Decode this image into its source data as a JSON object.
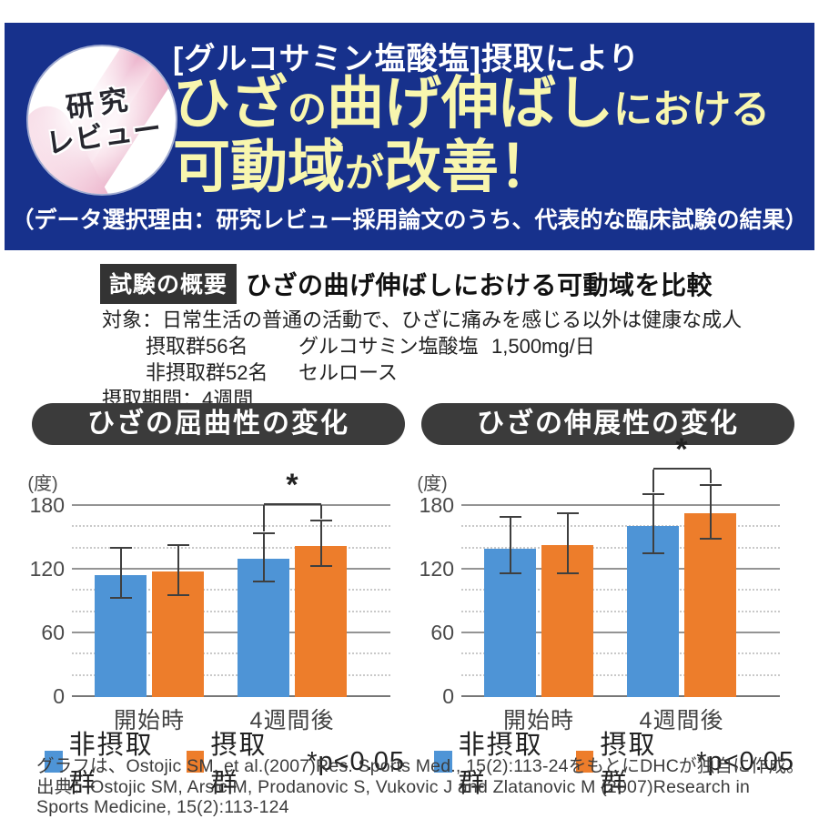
{
  "header": {
    "badge_line1": "研究",
    "badge_line2": "レビュー",
    "subtitle": "[グルコサミン塩酸塩]摂取により",
    "title_part_hiza": "ひざ",
    "title_part_no": "の",
    "title_part_magenobashi": "曲げ伸ばし",
    "title_part_niokeru": "における",
    "title_part_kadouiki": "可動域",
    "title_part_ga": "が",
    "title_part_kaizen": "改善！",
    "note": "（データ選択理由：研究レビュー採用論文のうち、代表的な臨床試験の結果）",
    "background_color": "#17318c",
    "title_color": "#f8f6ae"
  },
  "overview": {
    "tag": "試験の概要",
    "title": "ひざの曲げ伸ばしにおける可動域を比較"
  },
  "details": {
    "subject_label": "対象：",
    "subject_text": "日常生活の普通の活動で、ひざに痛みを感じる以外は健康な成人",
    "intake_group": "摂取群56名",
    "intake_substance": "グルコサミン塩酸塩",
    "intake_dose": "1,500mg/日",
    "control_group": "非摂取群52名",
    "control_substance": "セルロース",
    "period": "摂取期間：4週間"
  },
  "chart_data": [
    {
      "type": "bar",
      "title": "ひざの屈曲性の変化",
      "unit_label": "(度)",
      "categories": [
        "開始時",
        "4週間後"
      ],
      "series": [
        {
          "name": "非摂取群",
          "color": "#4e94d6",
          "values": [
            115,
            130
          ],
          "error_low": [
            93,
            108
          ],
          "error_high": [
            138,
            152
          ]
        },
        {
          "name": "摂取群",
          "color": "#ed7d2b",
          "values": [
            118,
            142
          ],
          "error_low": [
            95,
            123
          ],
          "error_high": [
            141,
            164
          ]
        }
      ],
      "ylim": [
        0,
        180
      ],
      "yticks": [
        0,
        60,
        120,
        180
      ],
      "minor_gridlines": [
        20,
        40,
        80,
        100,
        140,
        160
      ],
      "significance": {
        "category_index": 1,
        "marker": "*"
      },
      "legend_note": "*p<0.05",
      "legend_position": "bottom"
    },
    {
      "type": "bar",
      "title": "ひざの伸展性の変化",
      "unit_label": "(度)",
      "categories": [
        "開始時",
        "4週間後"
      ],
      "series": [
        {
          "name": "非摂取群",
          "color": "#4e94d6",
          "values": [
            140,
            161
          ],
          "error_low": [
            116,
            135
          ],
          "error_high": [
            167,
            189
          ]
        },
        {
          "name": "摂取群",
          "color": "#ed7d2b",
          "values": [
            143,
            173
          ],
          "error_low": [
            116,
            148
          ],
          "error_high": [
            171,
            197
          ]
        }
      ],
      "ylim": [
        0,
        180
      ],
      "yticks": [
        0,
        60,
        120,
        180
      ],
      "minor_gridlines": [
        20,
        40,
        80,
        100,
        140,
        160
      ],
      "significance": {
        "category_index": 1,
        "marker": "*"
      },
      "legend_note": "*p<0.05",
      "legend_position": "bottom"
    }
  ],
  "footer": {
    "line1": "グラフは、Ostojic SM, et al.(2007)Res. Sports Med., 15(2):113-24をもとにDHCが独自に作成。",
    "line2": "出典：Ostojic SM, Arsic M, Prodanovic S, Vukovic J and Zlatanovic M  (2007)Research in",
    "line3": "Sports Medicine, 15(2):113-124"
  }
}
